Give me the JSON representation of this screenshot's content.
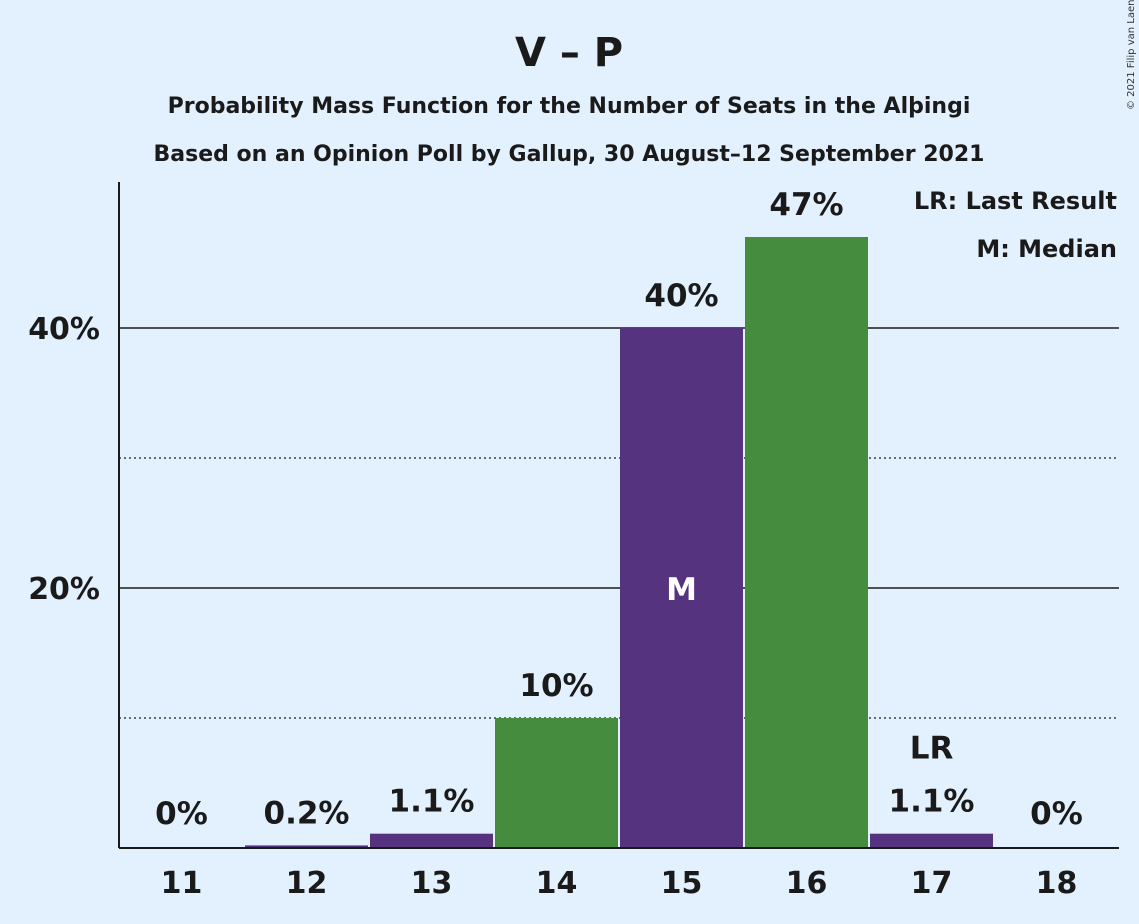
{
  "chart_data": {
    "type": "bar",
    "title": "V – P",
    "subtitle_lines": [
      "Probability Mass Function for the Number of Seats in the Alþingi",
      "Based on an Opinion Poll by Gallup, 30 August–12 September 2021"
    ],
    "categories": [
      "11",
      "12",
      "13",
      "14",
      "15",
      "16",
      "17",
      "18"
    ],
    "values": [
      0,
      0.2,
      1.1,
      10,
      40,
      47,
      1.1,
      0
    ],
    "value_labels": [
      "0%",
      "0.2%",
      "1.1%",
      "10%",
      "40%",
      "47%",
      "1.1%",
      "0%"
    ],
    "ylim": [
      0,
      50
    ],
    "yticks": [
      {
        "value": 20,
        "label": "20%"
      },
      {
        "value": 40,
        "label": "40%"
      }
    ],
    "minor_gridlines": [
      10,
      30
    ],
    "median_index": 4,
    "median_marker": "M",
    "last_result_index": 6,
    "last_result_marker": "LR",
    "legend": [
      "LR: Last Result",
      "M: Median"
    ],
    "legend_placement": "top-right",
    "colors": {
      "purple": "#55337f",
      "green": "#468c3f",
      "background": "#e3f0fd",
      "text": "#1a1a1a"
    },
    "bar_colors": [
      "purple",
      "purple",
      "purple",
      "green",
      "purple",
      "green",
      "purple",
      "green"
    ]
  },
  "copyright": "© 2021 Filip van Laenen"
}
